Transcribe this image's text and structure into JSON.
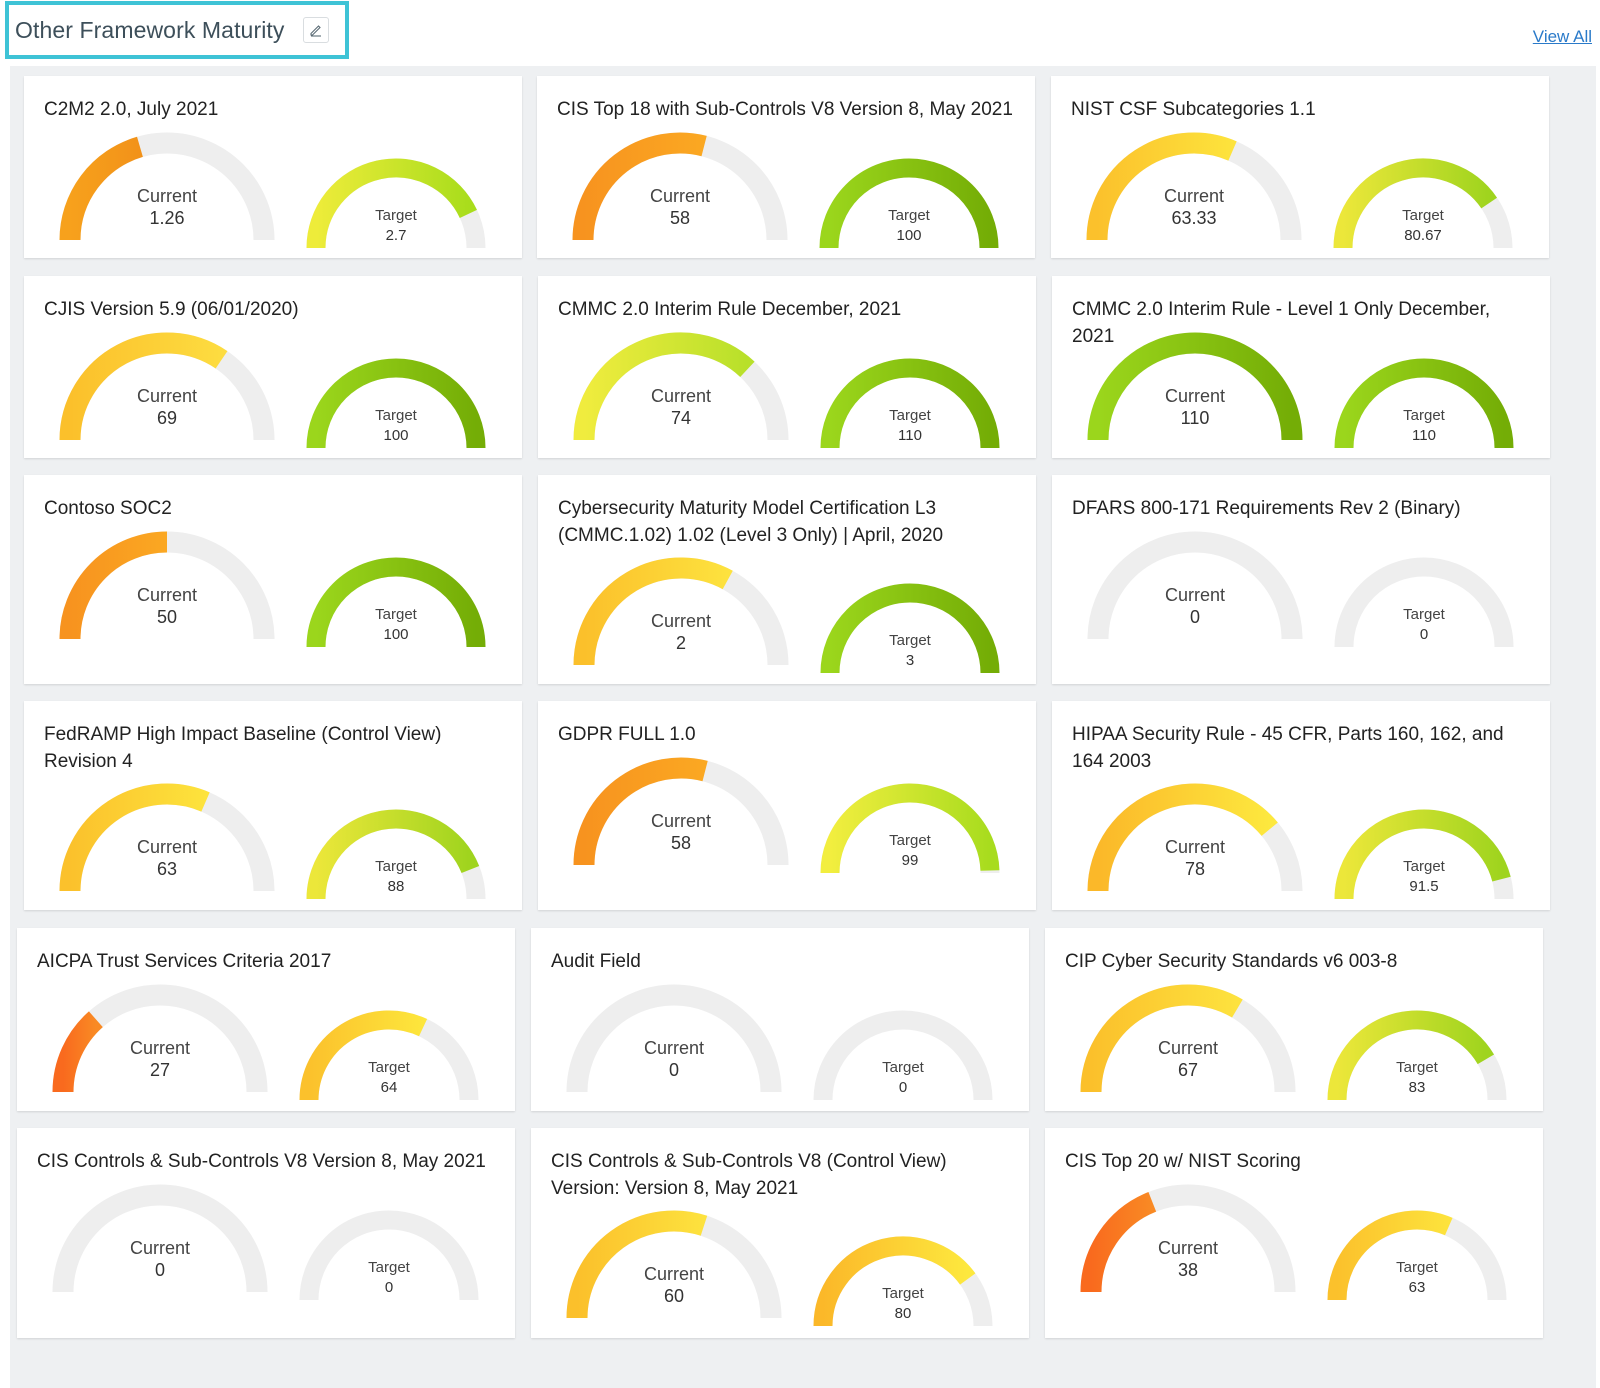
{
  "header": {
    "title": "Other Framework Maturity",
    "edit_icon": "pencil-icon",
    "view_all": "View All"
  },
  "labels": {
    "current": "Current",
    "target": "Target"
  },
  "colors": {
    "track": "#eeeeee",
    "accent": "#3ec3d6",
    "link": "#2a7ac9"
  },
  "cards": [
    {
      "title": "C2M2 2.0, July 2021",
      "current": {
        "value": "1.26",
        "fraction": 0.41,
        "c1": "#f7a11c",
        "c2": "#f29219"
      },
      "target": {
        "value": "2.7",
        "fraction": 0.86,
        "c1": "#eeec3a",
        "c2": "#a9dd1c"
      }
    },
    {
      "title": "CIS Top 18 with Sub-Controls V8 Version 8, May 2021",
      "current": {
        "value": "58",
        "fraction": 0.58,
        "c1": "#f7931f",
        "c2": "#fba822"
      },
      "target": {
        "value": "100",
        "fraction": 1.0,
        "c1": "#9bd61c",
        "c2": "#74ad06"
      }
    },
    {
      "title": "NIST CSF Subcategories 1.1",
      "current": {
        "value": "63.33",
        "fraction": 0.63,
        "c1": "#fbc12c",
        "c2": "#fde33c"
      },
      "target": {
        "value": "80.67",
        "fraction": 0.81,
        "c1": "#ece73a",
        "c2": "#9fd41e"
      }
    },
    {
      "title": "CJIS Version 5.9 (06/01/2020)",
      "current": {
        "value": "69",
        "fraction": 0.69,
        "c1": "#fbc02b",
        "c2": "#fddc40"
      },
      "target": {
        "value": "100",
        "fraction": 1.0,
        "c1": "#9bd61c",
        "c2": "#74ad06"
      }
    },
    {
      "title": "CMMC 2.0 Interim Rule December, 2021",
      "current": {
        "value": "74",
        "fraction": 0.74,
        "c1": "#f0ec3e",
        "c2": "#b8e02a"
      },
      "target": {
        "value": "110",
        "fraction": 1.0,
        "c1": "#9bd61c",
        "c2": "#74ad06"
      }
    },
    {
      "title": "CMMC 2.0 Interim Rule - Level 1 Only December, 2021",
      "current": {
        "value": "110",
        "fraction": 1.0,
        "c1": "#9bd61c",
        "c2": "#74ad06"
      },
      "target": {
        "value": "110",
        "fraction": 1.0,
        "c1": "#9bd61c",
        "c2": "#74ad06"
      }
    },
    {
      "title": "Contoso SOC2",
      "current": {
        "value": "50",
        "fraction": 0.5,
        "c1": "#f7931f",
        "c2": "#fba822"
      },
      "target": {
        "value": "100",
        "fraction": 1.0,
        "c1": "#9bd61c",
        "c2": "#74ad06"
      }
    },
    {
      "title": "Cybersecurity Maturity Model Certification L3 (CMMC.1.02) 1.02 (Level 3 Only) | April, 2020",
      "current": {
        "value": "2",
        "fraction": 0.66,
        "c1": "#fbc02b",
        "c2": "#fde23e"
      },
      "target": {
        "value": "3",
        "fraction": 1.0,
        "c1": "#9bd61c",
        "c2": "#74ad06"
      }
    },
    {
      "title": "DFARS 800-171 Requirements Rev 2 (Binary)",
      "current": {
        "value": "0",
        "fraction": 0.0,
        "c1": "#cccccc",
        "c2": "#cccccc"
      },
      "target": {
        "value": "0",
        "fraction": 0.0,
        "c1": "#cccccc",
        "c2": "#cccccc"
      }
    },
    {
      "title": "FedRAMP High Impact Baseline (Control View) Revision 4",
      "current": {
        "value": "63",
        "fraction": 0.63,
        "c1": "#fbc12c",
        "c2": "#fde33c"
      },
      "target": {
        "value": "88",
        "fraction": 0.88,
        "c1": "#ece73a",
        "c2": "#9fd41e"
      }
    },
    {
      "title": "GDPR FULL 1.0",
      "current": {
        "value": "58",
        "fraction": 0.58,
        "c1": "#f7931f",
        "c2": "#fba822"
      },
      "target": {
        "value": "99",
        "fraction": 0.99,
        "c1": "#f2ee3f",
        "c2": "#a8dc1e"
      }
    },
    {
      "title": "HIPAA Security Rule - 45 CFR, Parts 160, 162, and 164 2003",
      "current": {
        "value": "78",
        "fraction": 0.78,
        "c1": "#fbb829",
        "c2": "#fde83e"
      },
      "target": {
        "value": "91.5",
        "fraction": 0.92,
        "c1": "#ece73a",
        "c2": "#9fd41e"
      }
    },
    {
      "title": "AICPA Trust Services Criteria 2017",
      "current": {
        "value": "27",
        "fraction": 0.27,
        "c1": "#f96a1e",
        "c2": "#f98a24"
      },
      "target": {
        "value": "64",
        "fraction": 0.64,
        "c1": "#fbc12c",
        "c2": "#fde63c"
      }
    },
    {
      "title": "Audit Field",
      "current": {
        "value": "0",
        "fraction": 0.0,
        "c1": "#cccccc",
        "c2": "#cccccc"
      },
      "target": {
        "value": "0",
        "fraction": 0.0,
        "c1": "#cccccc",
        "c2": "#cccccc"
      }
    },
    {
      "title": "CIP Cyber Security Standards v6 003-8",
      "current": {
        "value": "67",
        "fraction": 0.67,
        "c1": "#fbc02b",
        "c2": "#fde23e"
      },
      "target": {
        "value": "83",
        "fraction": 0.83,
        "c1": "#ece73a",
        "c2": "#9fd41e"
      }
    },
    {
      "title": "CIS Controls & Sub-Controls V8 Version 8, May 2021",
      "current": {
        "value": "0",
        "fraction": 0.0,
        "c1": "#cccccc",
        "c2": "#cccccc"
      },
      "target": {
        "value": "0",
        "fraction": 0.0,
        "c1": "#cccccc",
        "c2": "#cccccc"
      }
    },
    {
      "title": "CIS Controls & Sub-Controls V8 (Control View) Version: Version 8, May 2021",
      "current": {
        "value": "60",
        "fraction": 0.6,
        "c1": "#fbc02b",
        "c2": "#fde23e"
      },
      "target": {
        "value": "80",
        "fraction": 0.8,
        "c1": "#fbb829",
        "c2": "#fde83e"
      }
    },
    {
      "title": "CIS Top 20 w/ NIST Scoring",
      "current": {
        "value": "38",
        "fraction": 0.38,
        "c1": "#f96a1e",
        "c2": "#f98a24"
      },
      "target": {
        "value": "63",
        "fraction": 0.63,
        "c1": "#fbc12c",
        "c2": "#fde33c"
      }
    }
  ]
}
